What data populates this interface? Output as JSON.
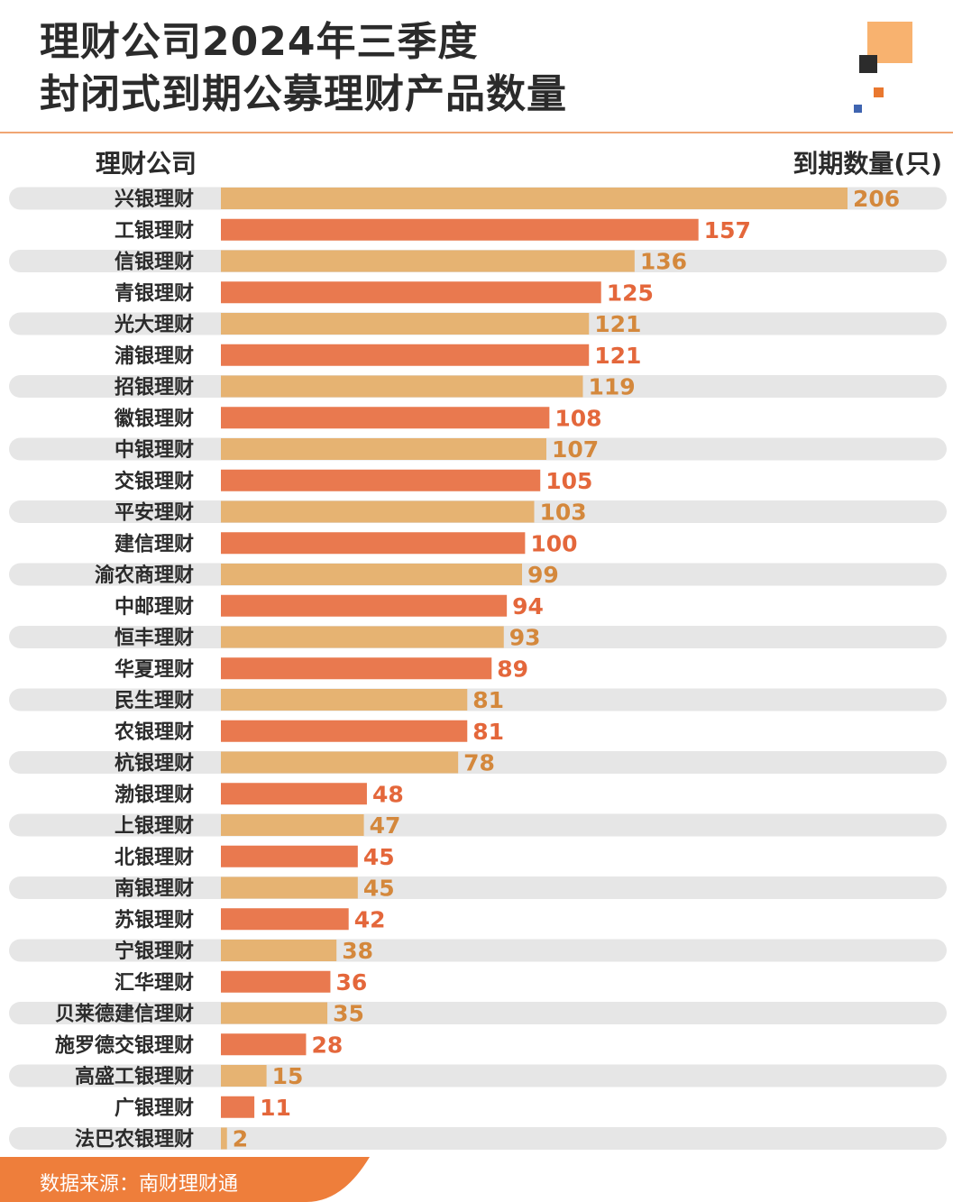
{
  "title": {
    "line1": "理财公司2024年三季度",
    "line2": "封闭式到期公募理财产品数量"
  },
  "column_headers": {
    "left": "理财公司",
    "right": "到期数量(只)"
  },
  "footer": {
    "source": "数据来源：南财理财通"
  },
  "colors": {
    "bar_light": "#e6b372",
    "bar_dark": "#e9794f",
    "value_light": "#d4883c",
    "value_dark": "#e4673b",
    "track": "#e6e6e6",
    "footer": "#ee7e3b"
  },
  "chart_data": {
    "type": "bar",
    "orientation": "horizontal",
    "xlim": [
      0,
      206
    ],
    "categories": [
      "兴银理财",
      "工银理财",
      "信银理财",
      "青银理财",
      "光大理财",
      "浦银理财",
      "招银理财",
      "徽银理财",
      "中银理财",
      "交银理财",
      "平安理财",
      "建信理财",
      "渝农商理财",
      "中邮理财",
      "恒丰理财",
      "华夏理财",
      "民生理财",
      "农银理财",
      "杭银理财",
      "渤银理财",
      "上银理财",
      "北银理财",
      "南银理财",
      "苏银理财",
      "宁银理财",
      "汇华理财",
      "贝莱德建信理财",
      "施罗德交银理财",
      "高盛工银理财",
      "广银理财",
      "法巴农银理财"
    ],
    "values": [
      206,
      157,
      136,
      125,
      121,
      121,
      119,
      108,
      107,
      105,
      103,
      100,
      99,
      94,
      93,
      89,
      81,
      81,
      78,
      48,
      47,
      45,
      45,
      42,
      38,
      36,
      35,
      28,
      15,
      11,
      2
    ]
  }
}
